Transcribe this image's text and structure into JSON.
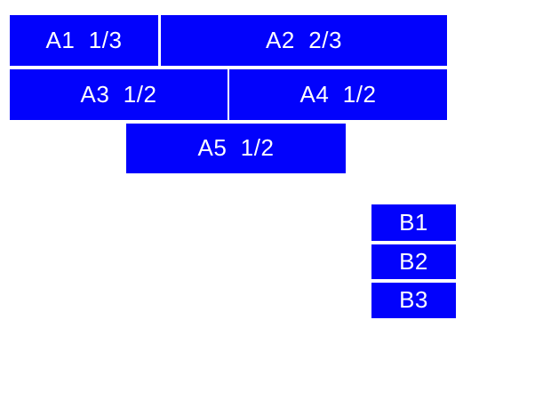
{
  "page": {
    "background_color": "#ffffff"
  },
  "colors": {
    "box_fill": "#0202fc",
    "label_text": "#ffffff"
  },
  "group_a": [
    {
      "id": "a1",
      "label": "A1  1/3"
    },
    {
      "id": "a2",
      "label": "A2  2/3"
    },
    {
      "id": "a3",
      "label": "A3  1/2"
    },
    {
      "id": "a4",
      "label": "A4  1/2"
    },
    {
      "id": "a5",
      "label": "A5  1/2"
    }
  ],
  "group_b": [
    {
      "id": "b1",
      "label": "B1"
    },
    {
      "id": "b2",
      "label": "B2"
    },
    {
      "id": "b3",
      "label": "B3"
    }
  ]
}
